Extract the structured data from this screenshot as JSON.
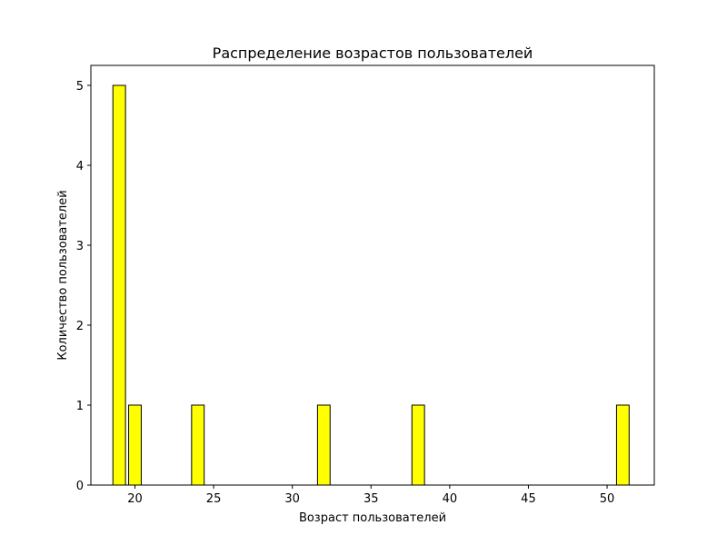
{
  "chart_data": {
    "type": "bar",
    "title": "Распределение возрастов пользователей",
    "xlabel": "Возраст пользователей",
    "ylabel": "Количество пользователей",
    "xlim": [
      17.2,
      53.0
    ],
    "ylim": [
      0,
      5.25
    ],
    "xticks": [
      20,
      25,
      30,
      35,
      40,
      45,
      50
    ],
    "yticks": [
      0,
      1,
      2,
      3,
      4,
      5
    ],
    "bin_width": 0.8,
    "bars": [
      {
        "x_start": 18.6,
        "x_end": 19.4,
        "value": 5
      },
      {
        "x_start": 19.6,
        "x_end": 20.4,
        "value": 1
      },
      {
        "x_start": 23.6,
        "x_end": 24.4,
        "value": 1
      },
      {
        "x_start": 31.6,
        "x_end": 32.4,
        "value": 1
      },
      {
        "x_start": 37.6,
        "x_end": 38.4,
        "value": 1
      },
      {
        "x_start": 50.6,
        "x_end": 51.4,
        "value": 1
      }
    ],
    "bar_color": "#ffff00",
    "edge_color": "#000000",
    "grid": false,
    "legend": "none"
  }
}
